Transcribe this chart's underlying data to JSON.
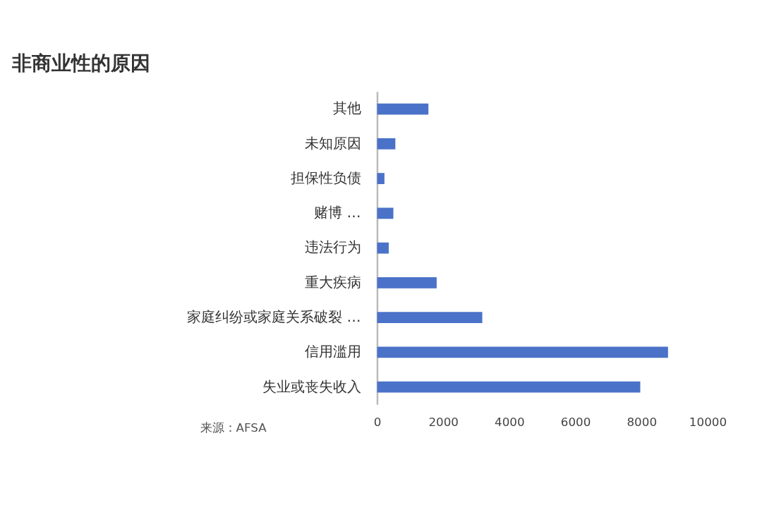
{
  "chart_data": {
    "type": "bar",
    "orientation": "horizontal",
    "title": "非商业性的原因",
    "categories": [
      "其他",
      "未知原因",
      "担保性负债",
      "赌博 …",
      "违法行为",
      "重大疾病",
      "家庭纠纷或家庭关系破裂 …",
      "信用滥用",
      "失业或丧失收入"
    ],
    "values": [
      1550,
      550,
      220,
      490,
      350,
      1800,
      3180,
      8800,
      7960
    ],
    "color": "#4a72c8",
    "xlim": [
      0,
      10000
    ],
    "xticks": [
      0,
      2000,
      4000,
      6000,
      8000,
      10000
    ],
    "grid": false,
    "annotations": [
      "来源：AFSA"
    ]
  }
}
